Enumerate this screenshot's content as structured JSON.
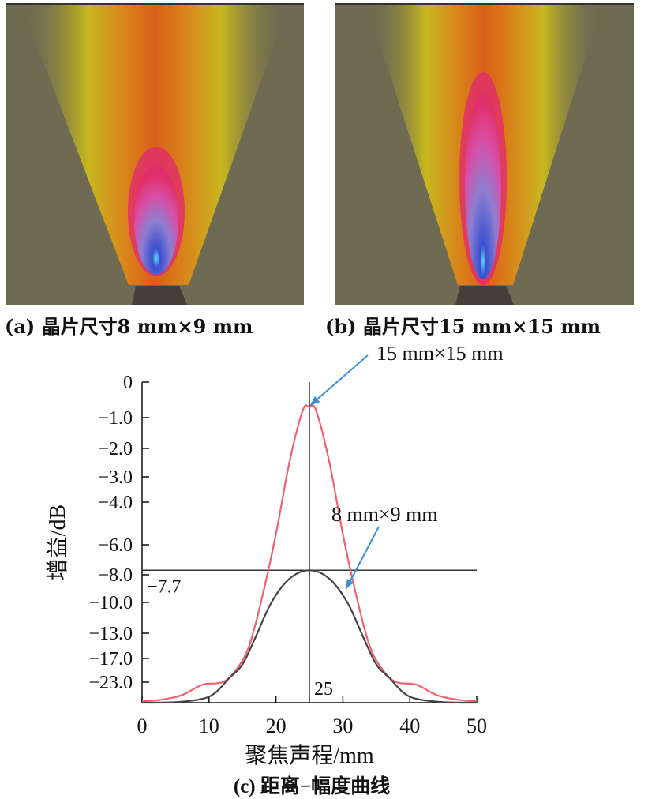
{
  "panels": [
    {
      "caption": "(a) 晶片尺寸8 mm×9 mm"
    },
    {
      "caption": "(b) 晶片尺寸15 mm×15 mm"
    }
  ],
  "colors": {
    "background_field": "#6e6b52",
    "beam_edge": "#c8b81e",
    "beam_core": "#d95f1a",
    "focus_outer": "#e0306a",
    "focus_inner": "#6d6fd0",
    "focus_hot": "#5fd8ff",
    "curve_15x15": "#f0626e",
    "curve_8x9": "#444444",
    "ref_lines": "#333333",
    "annotation_arrow": "#3d8fd6"
  },
  "chart_data": {
    "type": "line",
    "caption": "(c) 距离−幅度曲线",
    "xlabel": "聚焦声程/mm",
    "ylabel": "增益/dB",
    "xlim": [
      0,
      50
    ],
    "x_ticks": [
      "0",
      "10",
      "20",
      "30",
      "40",
      "50"
    ],
    "y_tick_labels": [
      "0",
      "-1.0",
      "-2.0",
      "-3.0",
      "-4.0",
      "-6.0",
      "-8.0",
      "-10.0",
      "-13.0",
      "-17.0",
      "-23.0"
    ],
    "reference_lines": {
      "y": -7.7,
      "y_label": "-7.7",
      "x": 25,
      "x_label": "25"
    },
    "series": [
      {
        "name": "15 mm×15 mm",
        "x": [
          0,
          3,
          6,
          9,
          12,
          14,
          16,
          18,
          20,
          22,
          24,
          25,
          26,
          28,
          30,
          32,
          34,
          36,
          38,
          41,
          44,
          47,
          50
        ],
        "y": [
          -30.5,
          -29.8,
          -28.0,
          -24.0,
          -23.0,
          -20.0,
          -15.0,
          -9.5,
          -5.5,
          -2.5,
          -0.8,
          -0.7,
          -0.8,
          -2.5,
          -5.5,
          -9.5,
          -15.0,
          -20.0,
          -23.0,
          -24.0,
          -28.0,
          -29.8,
          -30.5
        ]
      },
      {
        "name": "8 mm×9 mm",
        "x": [
          0,
          5,
          9,
          11,
          13,
          15,
          17,
          19,
          21,
          23,
          25,
          27,
          29,
          31,
          33,
          35,
          37,
          39,
          41,
          45,
          50
        ],
        "y": [
          -31.0,
          -30.8,
          -29.5,
          -27.0,
          -22.0,
          -18.5,
          -13.5,
          -10.4,
          -8.8,
          -7.95,
          -7.7,
          -7.95,
          -8.8,
          -10.4,
          -13.5,
          -18.5,
          -22.0,
          -27.0,
          -29.5,
          -30.8,
          -31.0
        ]
      }
    ],
    "annotations": [
      {
        "text": "15 mm×15 mm",
        "points_to": [
          25,
          -0.7
        ]
      },
      {
        "text": "8 mm×9 mm",
        "points_to": [
          30,
          -8.8
        ]
      }
    ]
  }
}
